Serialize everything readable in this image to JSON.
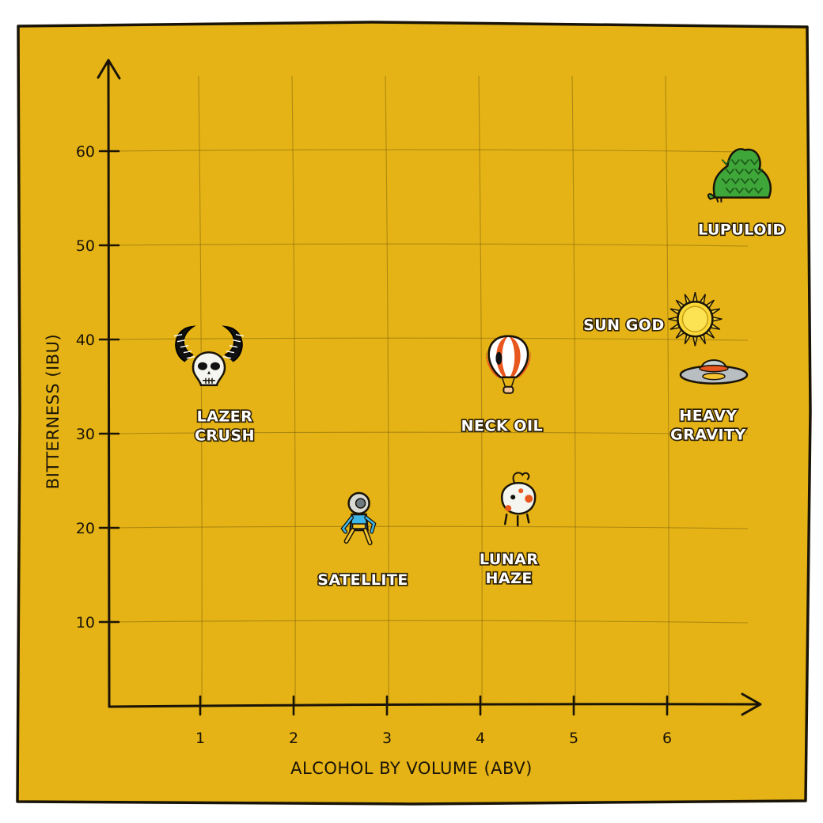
{
  "chart_data": {
    "type": "scatter",
    "title": "",
    "xlabel": "ALCOHOL BY VOLUME (ABV)",
    "ylabel": "BITTERNESS (IBU)",
    "xticks": [
      1,
      2,
      3,
      4,
      5,
      6
    ],
    "yticks": [
      10,
      20,
      30,
      40,
      50,
      60
    ],
    "grid": true,
    "background_color": "#e5b315",
    "ink_color": "#1a1408",
    "points": [
      {
        "name": "LAZER CRUSH",
        "lines": [
          "LAZER",
          "CRUSH"
        ],
        "x": 0.5,
        "y": 37,
        "icon": "skull-horns-icon"
      },
      {
        "name": "SATELLITE",
        "lines": [
          "SATELLITE"
        ],
        "x": 2.7,
        "y": 20,
        "icon": "astronaut-icon"
      },
      {
        "name": "NECK OIL",
        "lines": [
          "NECK OIL"
        ],
        "x": 4.3,
        "y": 37,
        "icon": "hot-air-balloon-icon"
      },
      {
        "name": "LUNAR HAZE",
        "lines": [
          "LUNAR",
          "HAZE"
        ],
        "x": 4.4,
        "y": 22,
        "icon": "moon-creature-icon"
      },
      {
        "name": "SUN GOD",
        "lines": [
          "SUN GOD"
        ],
        "x": 6.3,
        "y": 42,
        "icon": "sun-icon"
      },
      {
        "name": "HEAVY GRAVITY",
        "lines": [
          "HEAVY",
          "GRAVITY"
        ],
        "x": 6.5,
        "y": 36,
        "icon": "ufo-icon"
      },
      {
        "name": "LUPULOID",
        "lines": [
          "LUPULOID"
        ],
        "x": 6.8,
        "y": 56,
        "icon": "hop-monster-icon"
      }
    ]
  }
}
